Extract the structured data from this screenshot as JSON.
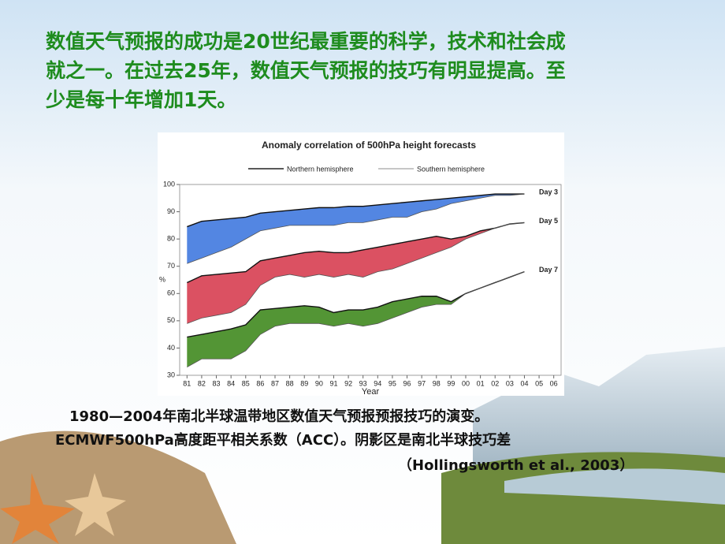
{
  "headline": {
    "lines": [
      "数值天气预报的成功是20世纪最重要的科学，技术和社会成",
      "就之一。在过去25年，数值天气预报的技巧有明显提高。至",
      "少是每十年增加1天。"
    ]
  },
  "chart_data": {
    "type": "band",
    "title": "Anomaly correlation of 500hPa height forecasts",
    "legend": [
      "Northern hemisphere",
      "Southern hemisphere"
    ],
    "y_label": "%",
    "x_label": "Year",
    "x": [
      1981,
      1982,
      1983,
      1984,
      1985,
      1986,
      1987,
      1988,
      1989,
      1990,
      1991,
      1992,
      1993,
      1994,
      1995,
      1996,
      1997,
      1998,
      1999,
      2000,
      2001,
      2002,
      2003,
      2004
    ],
    "xlim": [
      1980.5,
      2006.5
    ],
    "xticks": [
      {
        "value": 1981,
        "label": "81"
      },
      {
        "value": 1982,
        "label": "82"
      },
      {
        "value": 1983,
        "label": "83"
      },
      {
        "value": 1984,
        "label": "84"
      },
      {
        "value": 1985,
        "label": "85"
      },
      {
        "value": 1986,
        "label": "86"
      },
      {
        "value": 1987,
        "label": "87"
      },
      {
        "value": 1988,
        "label": "88"
      },
      {
        "value": 1989,
        "label": "89"
      },
      {
        "value": 1990,
        "label": "90"
      },
      {
        "value": 1991,
        "label": "91"
      },
      {
        "value": 1992,
        "label": "92"
      },
      {
        "value": 1993,
        "label": "93"
      },
      {
        "value": 1994,
        "label": "94"
      },
      {
        "value": 1995,
        "label": "95"
      },
      {
        "value": 1996,
        "label": "96"
      },
      {
        "value": 1997,
        "label": "97"
      },
      {
        "value": 1998,
        "label": "98"
      },
      {
        "value": 1999,
        "label": "99"
      },
      {
        "value": 2000,
        "label": "00"
      },
      {
        "value": 2001,
        "label": "01"
      },
      {
        "value": 2002,
        "label": "02"
      },
      {
        "value": 2003,
        "label": "03"
      },
      {
        "value": 2004,
        "label": "04"
      },
      {
        "value": 2005,
        "label": "05"
      },
      {
        "value": 2006,
        "label": "06"
      }
    ],
    "ylim": [
      30,
      100
    ],
    "yticks": [
      30,
      40,
      50,
      60,
      70,
      80,
      90,
      100
    ],
    "bands": [
      {
        "name": "Day 3",
        "color": "#4a7fe0",
        "northern": [
          84.5,
          86.5,
          87,
          87.5,
          88,
          89.5,
          90,
          90.5,
          91,
          91.5,
          91.5,
          92,
          92,
          92.5,
          93,
          93.5,
          94,
          94.5,
          95,
          95.5,
          96,
          96.5,
          96.5,
          96.5
        ],
        "southern": [
          71,
          73,
          75,
          77,
          80,
          83,
          84,
          85,
          85,
          85,
          85,
          86,
          86,
          87,
          88,
          88,
          90,
          91,
          93,
          94,
          95,
          96,
          96,
          96.5
        ]
      },
      {
        "name": "Day 5",
        "color": "#d9485a",
        "northern": [
          64,
          66.5,
          67,
          67.5,
          68,
          72,
          73,
          74,
          75,
          75.5,
          75,
          75,
          76,
          77,
          78,
          79,
          80,
          81,
          80,
          81,
          83,
          84,
          85.5,
          86
        ],
        "southern": [
          49,
          51,
          52,
          53,
          56,
          63,
          66,
          67,
          66,
          67,
          66,
          67,
          66,
          68,
          69,
          71,
          73,
          75,
          77,
          80,
          82,
          84,
          85.5,
          86
        ]
      },
      {
        "name": "Day 7",
        "color": "#4a8f2a",
        "northern": [
          44,
          45,
          46,
          47,
          48.5,
          54,
          54.5,
          55,
          55.5,
          55,
          53,
          54,
          54,
          55,
          57,
          58,
          59,
          59,
          57,
          60,
          62,
          64,
          66,
          68
        ],
        "southern": [
          33,
          36,
          36,
          36,
          39,
          45,
          48,
          49,
          49,
          49,
          48,
          49,
          48,
          49,
          51,
          53,
          55,
          56,
          56,
          60,
          62,
          64,
          66,
          68
        ]
      }
    ]
  },
  "caption": {
    "lines": [
      "1980—2004年南北半球温带地区数值天气预报预报技巧的演变。",
      "ECMWF500hPa高度距平相关系数（ACC）。阴影区是南北半球技巧差",
      "（Hollingsworth et al., 2003）"
    ]
  }
}
